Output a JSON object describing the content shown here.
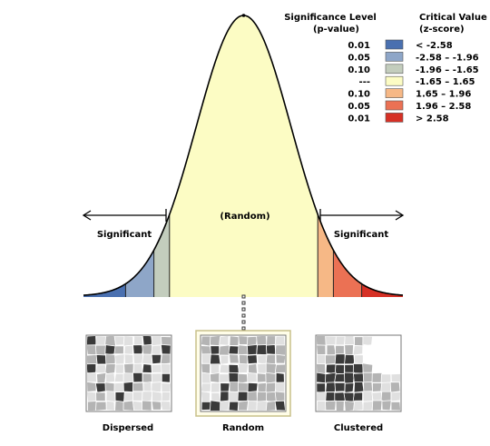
{
  "legend": {
    "significance_header": [
      "Significance Level",
      "(p-value)"
    ],
    "critical_header": [
      "Critical Value",
      "(z-score)"
    ],
    "rows": [
      {
        "p": "0.01",
        "z": "< -2.58",
        "color": "#4a70b0"
      },
      {
        "p": "0.05",
        "z": "-2.58 – -1.96",
        "color": "#8ea6c8"
      },
      {
        "p": "0.10",
        "z": "-1.96 – -1.65",
        "color": "#c3cdbd"
      },
      {
        "p": "---",
        "z": "-1.65 – 1.65",
        "color": "#fcfcc4"
      },
      {
        "p": "0.10",
        "z": "1.65 – 1.96",
        "color": "#f6b886"
      },
      {
        "p": "0.05",
        "z": "1.96 – 2.58",
        "color": "#eb7154"
      },
      {
        "p": "0.01",
        "z": "> 2.58",
        "color": "#d63025"
      }
    ]
  },
  "curve": {
    "center_label": "(Random)",
    "left_label": "Significant",
    "right_label": "Significant"
  },
  "patterns": [
    {
      "label": "Dispersed",
      "highlighted": false
    },
    {
      "label": "Random",
      "highlighted": true
    },
    {
      "label": "Clustered",
      "highlighted": false
    }
  ],
  "colors": {
    "curve_stroke": "#000000",
    "random_frame": "#c8c08a",
    "map_black": "#3a3a3a",
    "map_gray": "#b4b4b4",
    "map_light": "#e0e0e0"
  }
}
